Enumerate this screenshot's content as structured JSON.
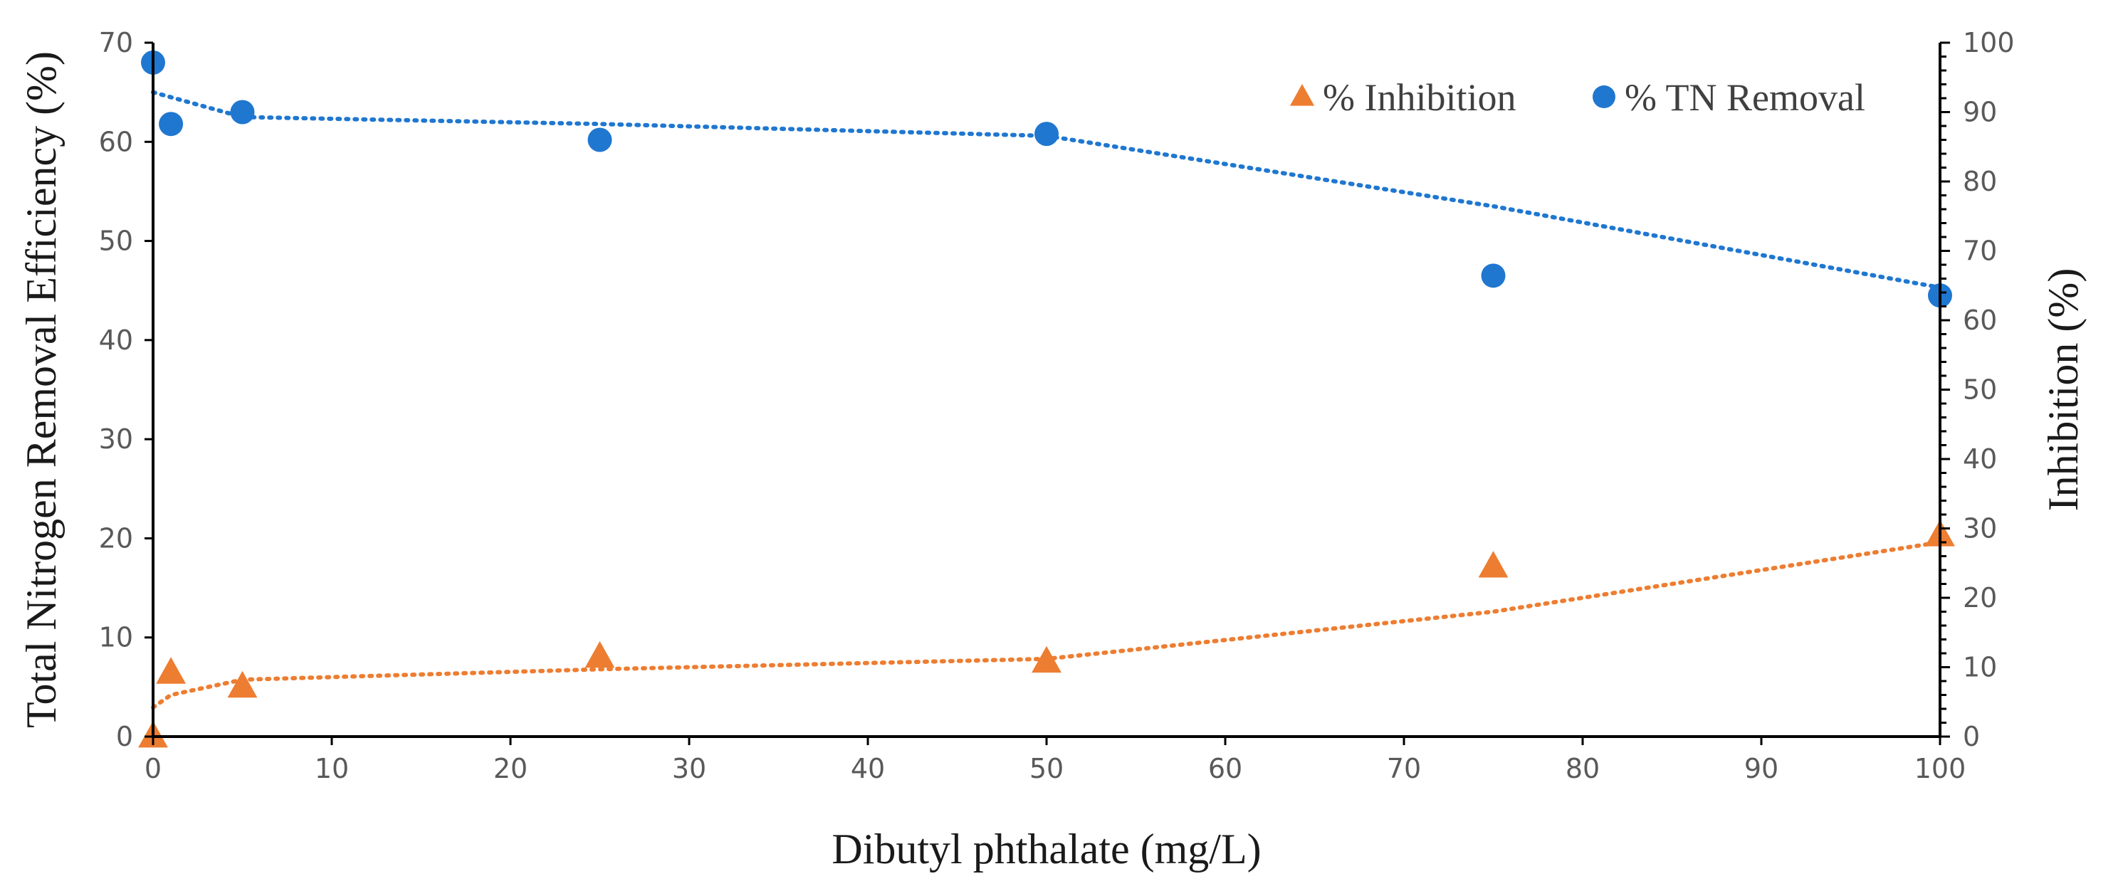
{
  "chart_data": {
    "type": "scatter",
    "xlabel": "Dibutyl phthalate (mg/L)",
    "ylabel_left": "Total Nitrogen Removal Efficiency (%)",
    "ylabel_right": "Inhibition (%)",
    "xlim": [
      0,
      100
    ],
    "ylim_left": [
      0,
      70
    ],
    "ylim_right": [
      0,
      100
    ],
    "xticks": [
      0,
      10,
      20,
      30,
      40,
      50,
      60,
      70,
      80,
      90,
      100
    ],
    "yticks_left": [
      0,
      10,
      20,
      30,
      40,
      50,
      60,
      70
    ],
    "yticks_right": [
      0,
      10,
      20,
      30,
      40,
      50,
      60,
      70,
      80,
      90,
      100
    ],
    "grid": false,
    "legend_position": "top-right",
    "series": [
      {
        "name": "% Inhibition",
        "axis": "right",
        "marker": "triangle",
        "color": "#ED7D31",
        "x": [
          0,
          1,
          5,
          25,
          50,
          75,
          100
        ],
        "y": [
          0,
          9.2,
          7.2,
          11.5,
          10.8,
          24.5,
          29
        ],
        "trendline": {
          "style": "dotted",
          "x": [
            0,
            1,
            5,
            25,
            50,
            75,
            100
          ],
          "y": [
            4.2,
            6,
            8.2,
            9.7,
            11.2,
            18,
            28
          ]
        }
      },
      {
        "name": "% TN Removal",
        "axis": "left",
        "marker": "circle",
        "color": "#1F77D0",
        "x": [
          0,
          1,
          5,
          25,
          50,
          75,
          100
        ],
        "y": [
          68,
          61.8,
          63,
          60.2,
          60.8,
          46.5,
          44.5
        ],
        "trendline": {
          "style": "dotted",
          "x": [
            0,
            1,
            5,
            25,
            50,
            75,
            100
          ],
          "y": [
            65,
            64.5,
            62.5,
            61.8,
            60.6,
            53.5,
            45.3
          ]
        }
      }
    ]
  }
}
